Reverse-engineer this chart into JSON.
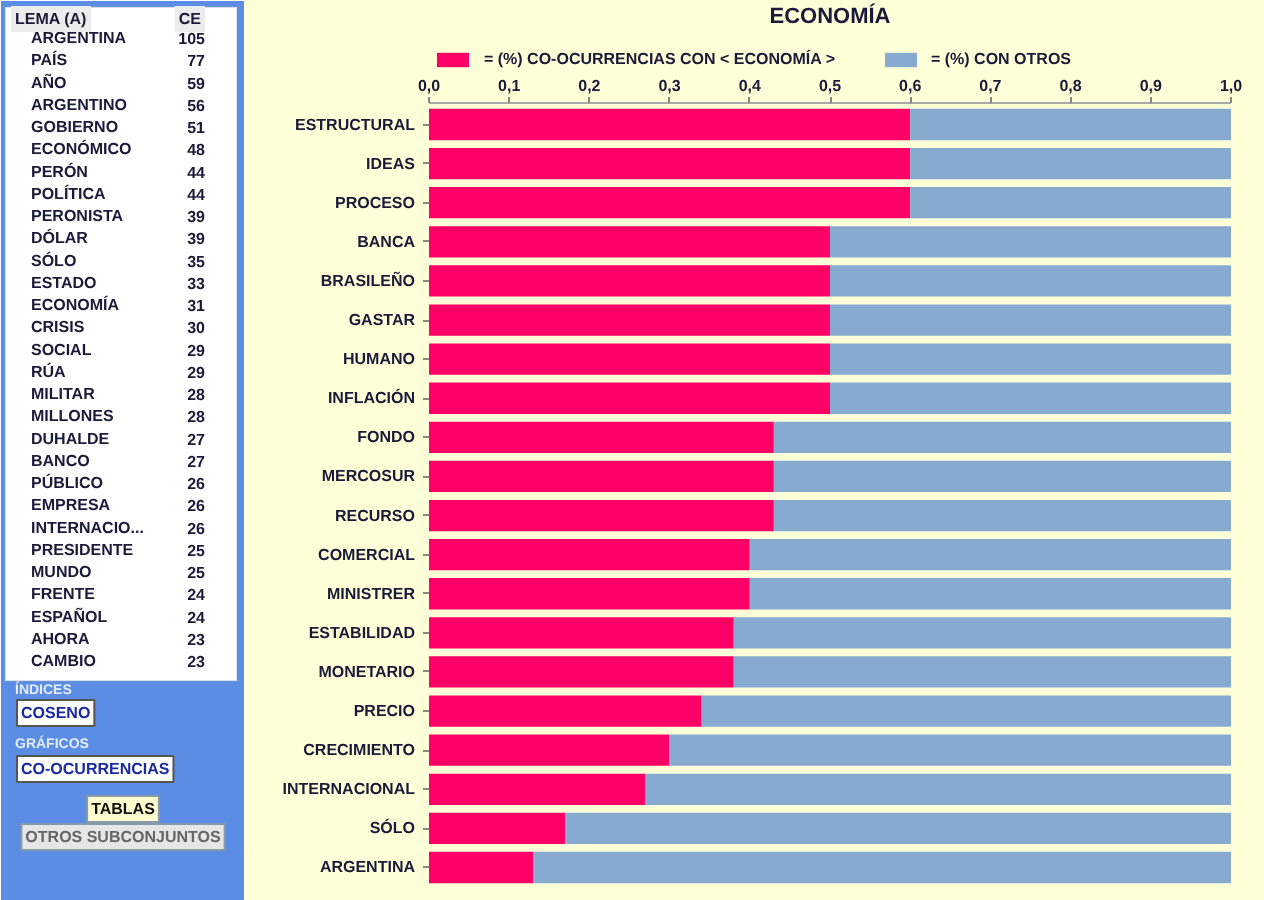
{
  "chart_data": [
    {
      "type": "other",
      "categories": [
        "ARGENTINA",
        "PAÍS",
        "AÑO",
        "ARGENTINO",
        "GOBIERNO",
        "ECONÓMICO",
        "PERÓN",
        "POLÍTICA",
        "PERONISTA",
        "DÓLAR",
        "SÓLO",
        "ESTADO",
        "ECONOMÍA",
        "CRISIS",
        "SOCIAL",
        "RÚA",
        "MILITAR",
        "MILLONES",
        "DUHALDE",
        "BANCO",
        "PÚBLICO",
        "EMPRESA",
        "INTERNACIO...",
        "PRESIDENTE",
        "MUNDO",
        "FRENTE",
        "ESPAÑOL",
        "AHORA",
        "CAMBIO"
      ],
      "values": [
        105,
        77,
        59,
        56,
        51,
        48,
        44,
        44,
        39,
        39,
        35,
        33,
        31,
        30,
        29,
        29,
        28,
        28,
        27,
        27,
        26,
        26,
        26,
        25,
        25,
        24,
        24,
        23,
        23
      ],
      "data_labels": true,
      "annotations": [
        "LEMA (A)",
        "CE",
        "ÍNDICES",
        "COSENO",
        "GRÁFICOS",
        "CO-OCURRENCIAS",
        "TABLAS",
        "OTROS SUBCONJUNTOS"
      ]
    },
    {
      "type": "bar",
      "orientation": "horizontal",
      "stacked": true,
      "title": "ECONOMÍA",
      "categories": [
        "ESTRUCTURAL",
        "IDEAS",
        "PROCESO",
        "BANCA",
        "BRASILEÑO",
        "GASTAR",
        "HUMANO",
        "INFLACIÓN",
        "FONDO",
        "MERCOSUR",
        "RECURSO",
        "COMERCIAL",
        "MINISTRER",
        "ESTABILIDAD",
        "MONETARIO",
        "PRECIO",
        "CRECIMIENTO",
        "INTERNACIONAL",
        "SÓLO",
        "ARGENTINA"
      ],
      "series": [
        {
          "name": "= (%) CO-OCURRENCIAS CON < ECONOMÍA >",
          "color": "#ff0066",
          "values": [
            0.6,
            0.6,
            0.6,
            0.5,
            0.5,
            0.5,
            0.5,
            0.5,
            0.43,
            0.43,
            0.43,
            0.4,
            0.4,
            0.38,
            0.38,
            0.34,
            0.3,
            0.27,
            0.17,
            0.13
          ]
        },
        {
          "name": "= (%) CON OTROS",
          "color": "#87abd0",
          "values": [
            0.4,
            0.4,
            0.4,
            0.5,
            0.5,
            0.5,
            0.5,
            0.5,
            0.57,
            0.57,
            0.57,
            0.6,
            0.6,
            0.62,
            0.62,
            0.66,
            0.7,
            0.73,
            0.83,
            0.87
          ]
        }
      ],
      "xlim": [
        0,
        1
      ],
      "xticks": [
        {
          "value": 0,
          "label": "0,0"
        },
        {
          "value": 0.1,
          "label": "0,1"
        },
        {
          "value": 0.2,
          "label": "0,2"
        },
        {
          "value": 0.3,
          "label": "0,3"
        },
        {
          "value": 0.4,
          "label": "0,4"
        },
        {
          "value": 0.5,
          "label": "0,5"
        },
        {
          "value": 0.6,
          "label": "0,6"
        },
        {
          "value": 0.7,
          "label": "0,7"
        },
        {
          "value": 0.8,
          "label": "0,8"
        },
        {
          "value": 0.9,
          "label": "0,9"
        },
        {
          "value": 1,
          "label": "1,0"
        }
      ],
      "legend": "top"
    }
  ]
}
